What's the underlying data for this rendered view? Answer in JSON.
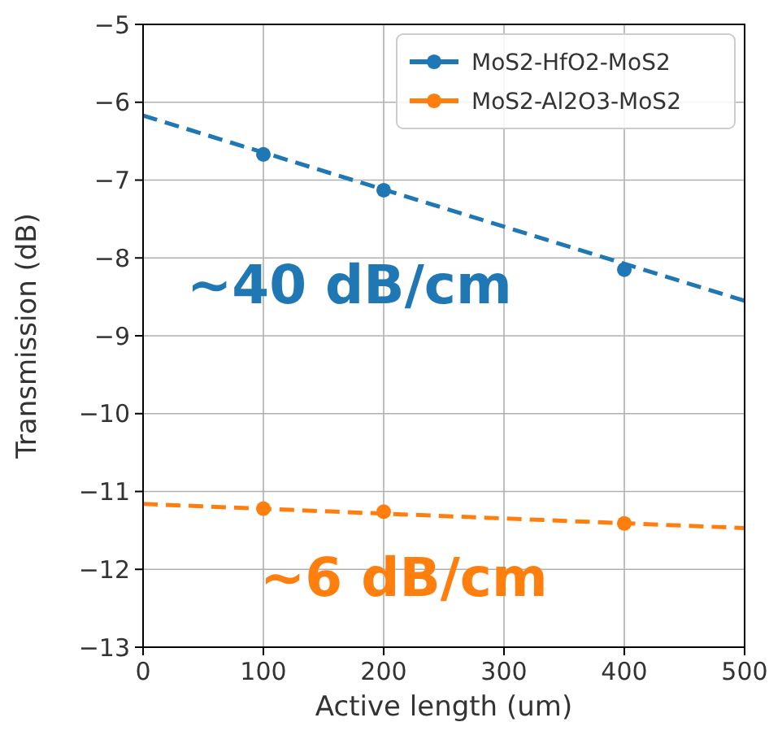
{
  "chart_data": {
    "type": "scatter",
    "xlabel": "Active length (um)",
    "ylabel": "Transmission (dB)",
    "xlim": [
      0,
      500
    ],
    "xticks": [
      0,
      100,
      200,
      300,
      400,
      500
    ],
    "ylim": [
      -13,
      -5
    ],
    "yticks": [
      -13,
      -12,
      -11,
      -10,
      -9,
      -8,
      -7,
      -6,
      -5
    ],
    "grid": true,
    "legend": "top right",
    "series": [
      {
        "name": "MoS2-HfO2-MoS2",
        "color": "#1f77b4",
        "x": [
          100,
          200,
          400
        ],
        "values": [
          -6.67,
          -7.13,
          -8.15
        ],
        "marker": "circle"
      },
      {
        "name": "MoS2-Al2O3-MoS2",
        "color": "#ff7f0e",
        "x": [
          100,
          200,
          400
        ],
        "values": [
          -11.22,
          -11.26,
          -11.41
        ],
        "marker": "circle"
      },
      {
        "type": "line",
        "line_style": "dashed",
        "color": "#1f77b4",
        "x": [
          0,
          500
        ],
        "values": [
          -6.17,
          -8.55
        ]
      },
      {
        "type": "line",
        "line_style": "dashed",
        "color": "#ff7f0e",
        "x": [
          0,
          500
        ],
        "values": [
          -11.16,
          -11.47
        ]
      }
    ],
    "annotations": [
      "~40 dB/cm",
      "~6 dB/cm"
    ]
  }
}
